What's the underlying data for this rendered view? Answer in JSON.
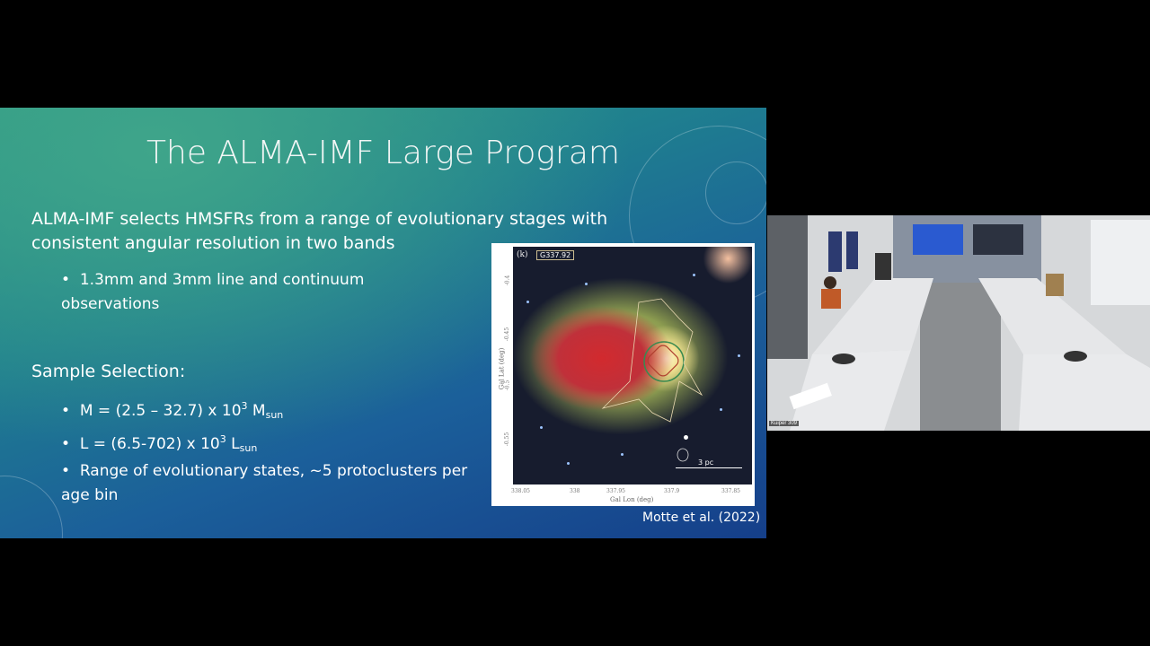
{
  "slide": {
    "title": "The ALMA-IMF Large Program",
    "intro": "ALMA-IMF selects HMSFRs from a range of evolutionary stages with consistent angular resolution in two bands",
    "bullet1": "1.3mm and 3mm line and continuum observations",
    "sample_heading": "Sample Selection:",
    "mass": {
      "prefix": "M = (2.5 – 32.7) x 10",
      "exp": "3",
      "unit": " M",
      "sub": "sun"
    },
    "lum": {
      "prefix": "L = (6.5-702) x 10",
      "exp": "3",
      "unit": " L",
      "sub": "sun"
    },
    "bullet4": "Range of evolutionary states, ~5 protoclusters per age bin",
    "figure": {
      "panel": "(k)",
      "field": "G337.92",
      "xlabel": "Gal Lon (deg)",
      "ylabel": "Gal Lat (deg)",
      "xticks": [
        "338.05",
        "338",
        "337.95",
        "337.9",
        "337.85"
      ],
      "yticks": [
        "-0.4",
        "-0.45",
        "-0.5",
        "-0.55"
      ],
      "scalebar": "3 pc"
    },
    "citation": "Motte et al. (2022)"
  },
  "camera": {
    "room_label": "Kuiper 309"
  }
}
